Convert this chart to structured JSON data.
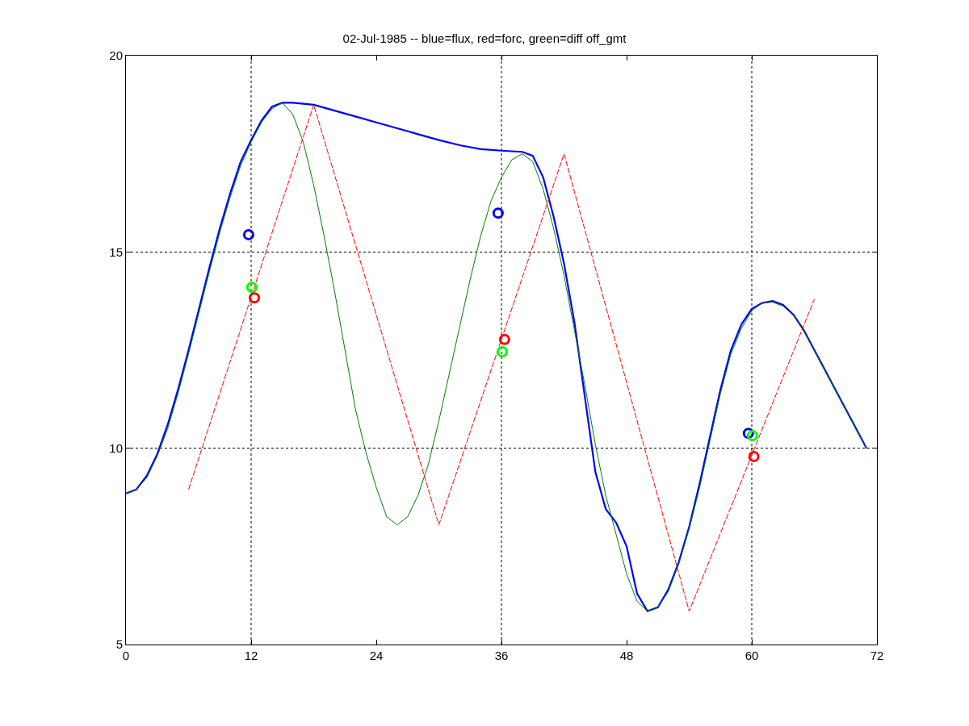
{
  "chart_data": {
    "type": "line",
    "title": "02-Jul-1985 -- blue=flux, red=forc, green=diff off_gmt",
    "xlim": [
      0,
      72
    ],
    "xticks": [
      0,
      12,
      24,
      36,
      48,
      60,
      72
    ],
    "ylim": [
      5,
      20
    ],
    "yticks": [
      5,
      10,
      15,
      20
    ],
    "grid": "y",
    "ref_lines": [
      {
        "axis": "x",
        "value": 12,
        "label": null,
        "color": "#000000",
        "line_style": "dotted"
      },
      {
        "axis": "x",
        "value": 36,
        "label": null,
        "color": "#000000",
        "line_style": "dotted"
      },
      {
        "axis": "x",
        "value": 60,
        "label": null,
        "color": "#000000",
        "line_style": "dotted"
      }
    ],
    "series": [
      {
        "color": "#0000ff",
        "line_style": "solid",
        "marker": "none",
        "x": [
          0,
          1,
          2,
          3,
          4,
          5,
          6,
          7,
          8,
          9,
          10,
          11,
          12,
          13,
          14,
          15,
          16,
          18,
          20,
          22,
          24,
          26,
          28,
          30,
          32,
          34,
          36,
          38,
          39,
          40,
          41,
          42,
          43,
          44,
          45,
          46,
          47,
          48,
          49,
          50,
          51,
          52,
          53,
          54,
          55,
          56,
          57,
          58,
          59,
          60,
          61,
          62,
          63,
          64,
          65,
          66,
          67,
          68,
          69,
          70,
          71
        ],
        "values": [
          8.85,
          8.95,
          9.3,
          9.85,
          10.6,
          11.5,
          12.5,
          13.55,
          14.6,
          15.6,
          16.5,
          17.3,
          17.85,
          18.35,
          18.7,
          18.8,
          18.8,
          18.75,
          18.6,
          18.45,
          18.3,
          18.15,
          18.0,
          17.85,
          17.72,
          17.62,
          17.58,
          17.55,
          17.45,
          16.9,
          15.9,
          14.7,
          13.2,
          11.3,
          9.4,
          8.45,
          8.1,
          7.5,
          6.3,
          5.85,
          5.95,
          6.4,
          7.1,
          8.0,
          9.1,
          10.3,
          11.5,
          12.5,
          13.15,
          13.55,
          13.7,
          13.75,
          13.65,
          13.4,
          13.0,
          12.5,
          12.0,
          11.5,
          11.0,
          10.5,
          10.0
        ]
      },
      {
        "color": "#008000",
        "line_style": "solid",
        "marker": "none",
        "x": [
          0,
          1,
          2,
          3,
          4,
          5,
          6,
          7,
          8,
          9,
          10,
          11,
          12,
          13,
          14,
          15,
          16,
          17,
          18,
          19,
          20,
          21,
          22,
          23,
          24,
          25,
          26,
          27,
          28,
          29,
          30,
          31,
          32,
          33,
          34,
          35,
          36,
          37,
          38,
          39,
          40,
          41,
          42,
          43,
          44,
          45,
          46,
          47,
          48,
          49,
          50,
          51,
          52,
          53,
          54,
          55,
          56,
          57,
          58,
          59,
          60,
          61,
          62,
          63,
          64,
          65,
          66,
          67,
          68,
          69,
          70,
          71
        ],
        "values": [
          8.85,
          8.95,
          9.25,
          9.8,
          10.5,
          11.4,
          12.4,
          13.45,
          14.5,
          15.5,
          16.4,
          17.2,
          17.8,
          18.3,
          18.65,
          18.8,
          18.5,
          17.8,
          16.7,
          15.4,
          14.0,
          12.5,
          11.0,
          9.9,
          9.0,
          8.25,
          8.05,
          8.25,
          8.8,
          9.6,
          10.7,
          11.9,
          13.1,
          14.3,
          15.4,
          16.3,
          16.9,
          17.35,
          17.5,
          17.3,
          16.6,
          15.6,
          14.4,
          13.0,
          11.6,
          10.1,
          8.8,
          7.8,
          6.8,
          6.1,
          5.85,
          5.95,
          6.35,
          7.05,
          7.95,
          9.0,
          10.2,
          11.4,
          12.4,
          13.05,
          13.5,
          13.7,
          13.72,
          13.62,
          13.38,
          12.98,
          12.48,
          11.98,
          11.48,
          10.98,
          10.48,
          9.98
        ]
      },
      {
        "color": "#ff0000",
        "line_style": "dashed",
        "marker": "none",
        "x": [
          6,
          18,
          30,
          42,
          54,
          66
        ],
        "values": [
          8.95,
          18.75,
          8.05,
          17.5,
          5.85,
          13.8
        ]
      },
      {
        "type": "scatter",
        "color": "#0000ff",
        "marker": "circle",
        "x": [
          11.76,
          35.68,
          59.67
        ],
        "values": [
          15.44,
          15.99,
          10.38
        ]
      },
      {
        "type": "scatter",
        "color": "#00ff00",
        "marker": "circle",
        "x": [
          12.07,
          36.07,
          60.06
        ],
        "values": [
          14.1,
          12.46,
          10.32
        ]
      },
      {
        "type": "scatter",
        "color": "#ff0000",
        "marker": "circle",
        "x": [
          12.31,
          36.3,
          60.2
        ],
        "values": [
          13.83,
          12.77,
          9.79
        ]
      }
    ]
  }
}
